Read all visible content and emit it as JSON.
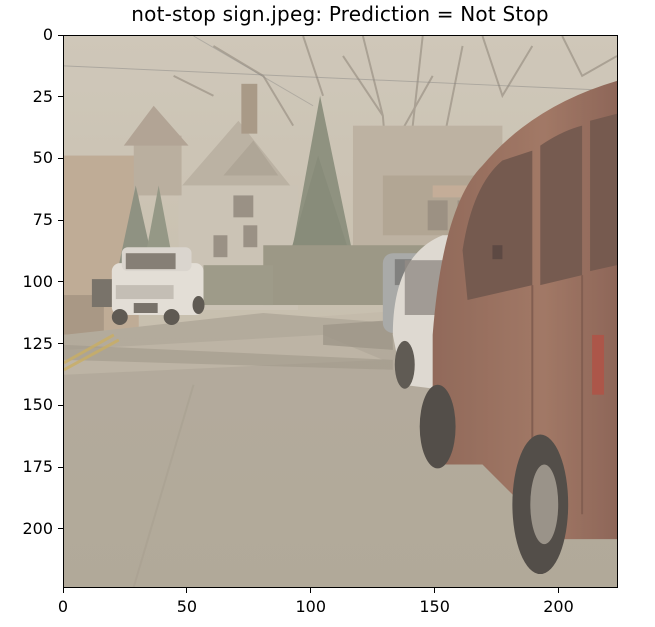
{
  "figure": {
    "title": "not-stop sign.jpeg: Prediction = Not Stop",
    "image_extent": [
      0,
      224
    ],
    "x_ticks": [
      "0",
      "50",
      "100",
      "150",
      "200"
    ],
    "y_ticks": [
      "0",
      "25",
      "50",
      "75",
      "100",
      "125",
      "150",
      "175",
      "200"
    ],
    "image_content": {
      "subject": "suburban street with parked cars",
      "elements": [
        "white SUV",
        "red minivan",
        "white car",
        "houses",
        "bare trees",
        "evergreen tree",
        "asphalt road with yellow center line"
      ]
    },
    "colors": {
      "road": "#a9a090",
      "sky": "#c8c0b0",
      "minivan": "#8a5a48",
      "white_car": "#e6e2dc"
    }
  }
}
